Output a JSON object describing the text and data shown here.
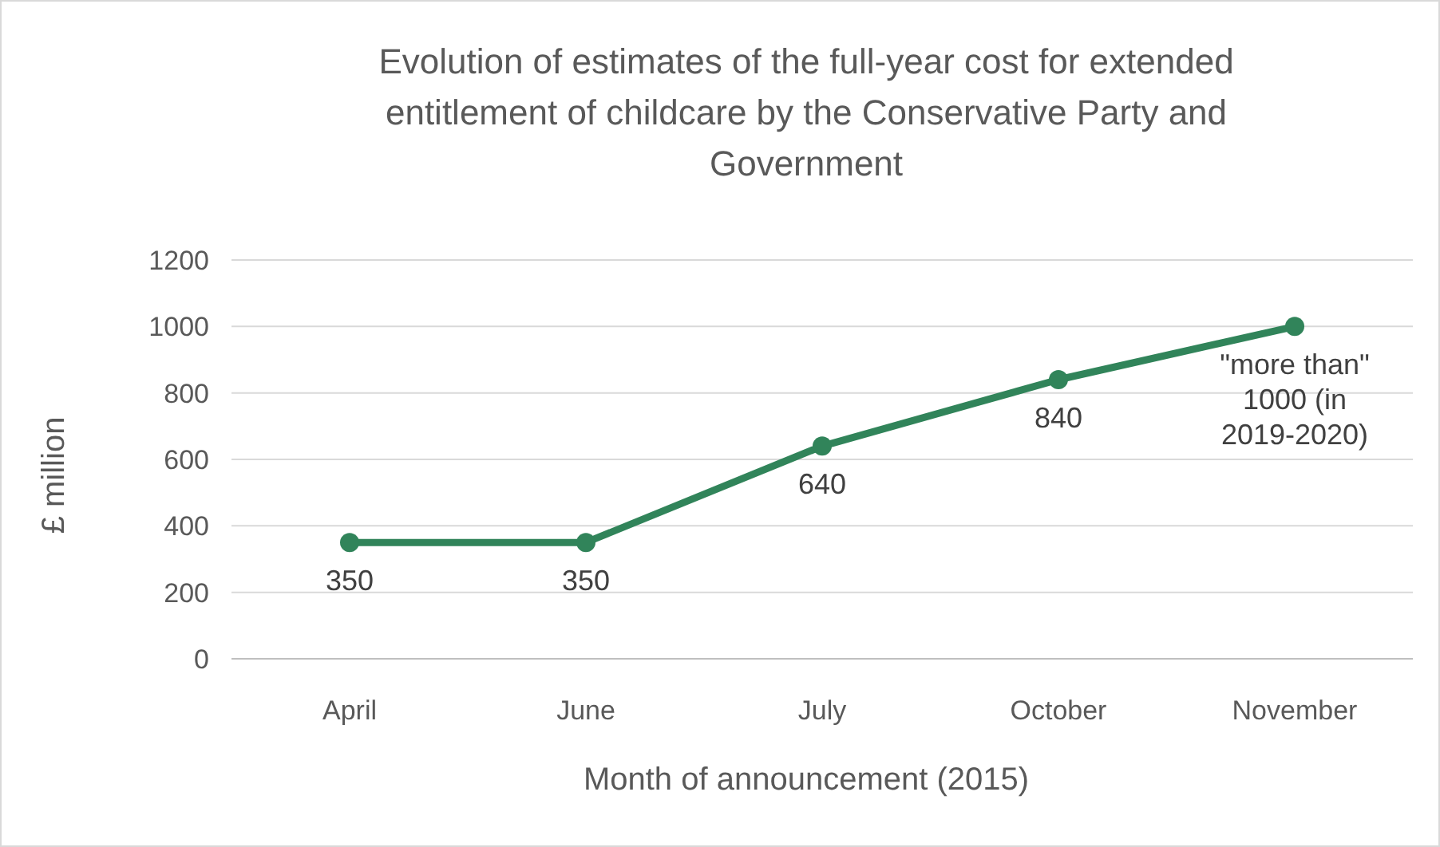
{
  "chart_data": {
    "type": "line",
    "title": "Evolution of estimates of the full-year cost for extended entitlement of childcare by the Conservative Party and Government",
    "xlabel": "Month of announcement (2015)",
    "ylabel": "£ million",
    "categories": [
      "April",
      "June",
      "July",
      "October",
      "November"
    ],
    "series": [
      {
        "color": "#31845a",
        "values": [
          350,
          350,
          640,
          840,
          1000
        ],
        "value_labels": [
          "350",
          "350",
          "640",
          "840",
          "\"more than\" 1000 (in 2019-2020)"
        ]
      }
    ],
    "ylim": [
      0,
      1200
    ],
    "yticks": [
      0,
      200,
      400,
      600,
      800,
      1000,
      1200
    ],
    "grid": "y",
    "marker": "circle",
    "line_style": "solid"
  }
}
